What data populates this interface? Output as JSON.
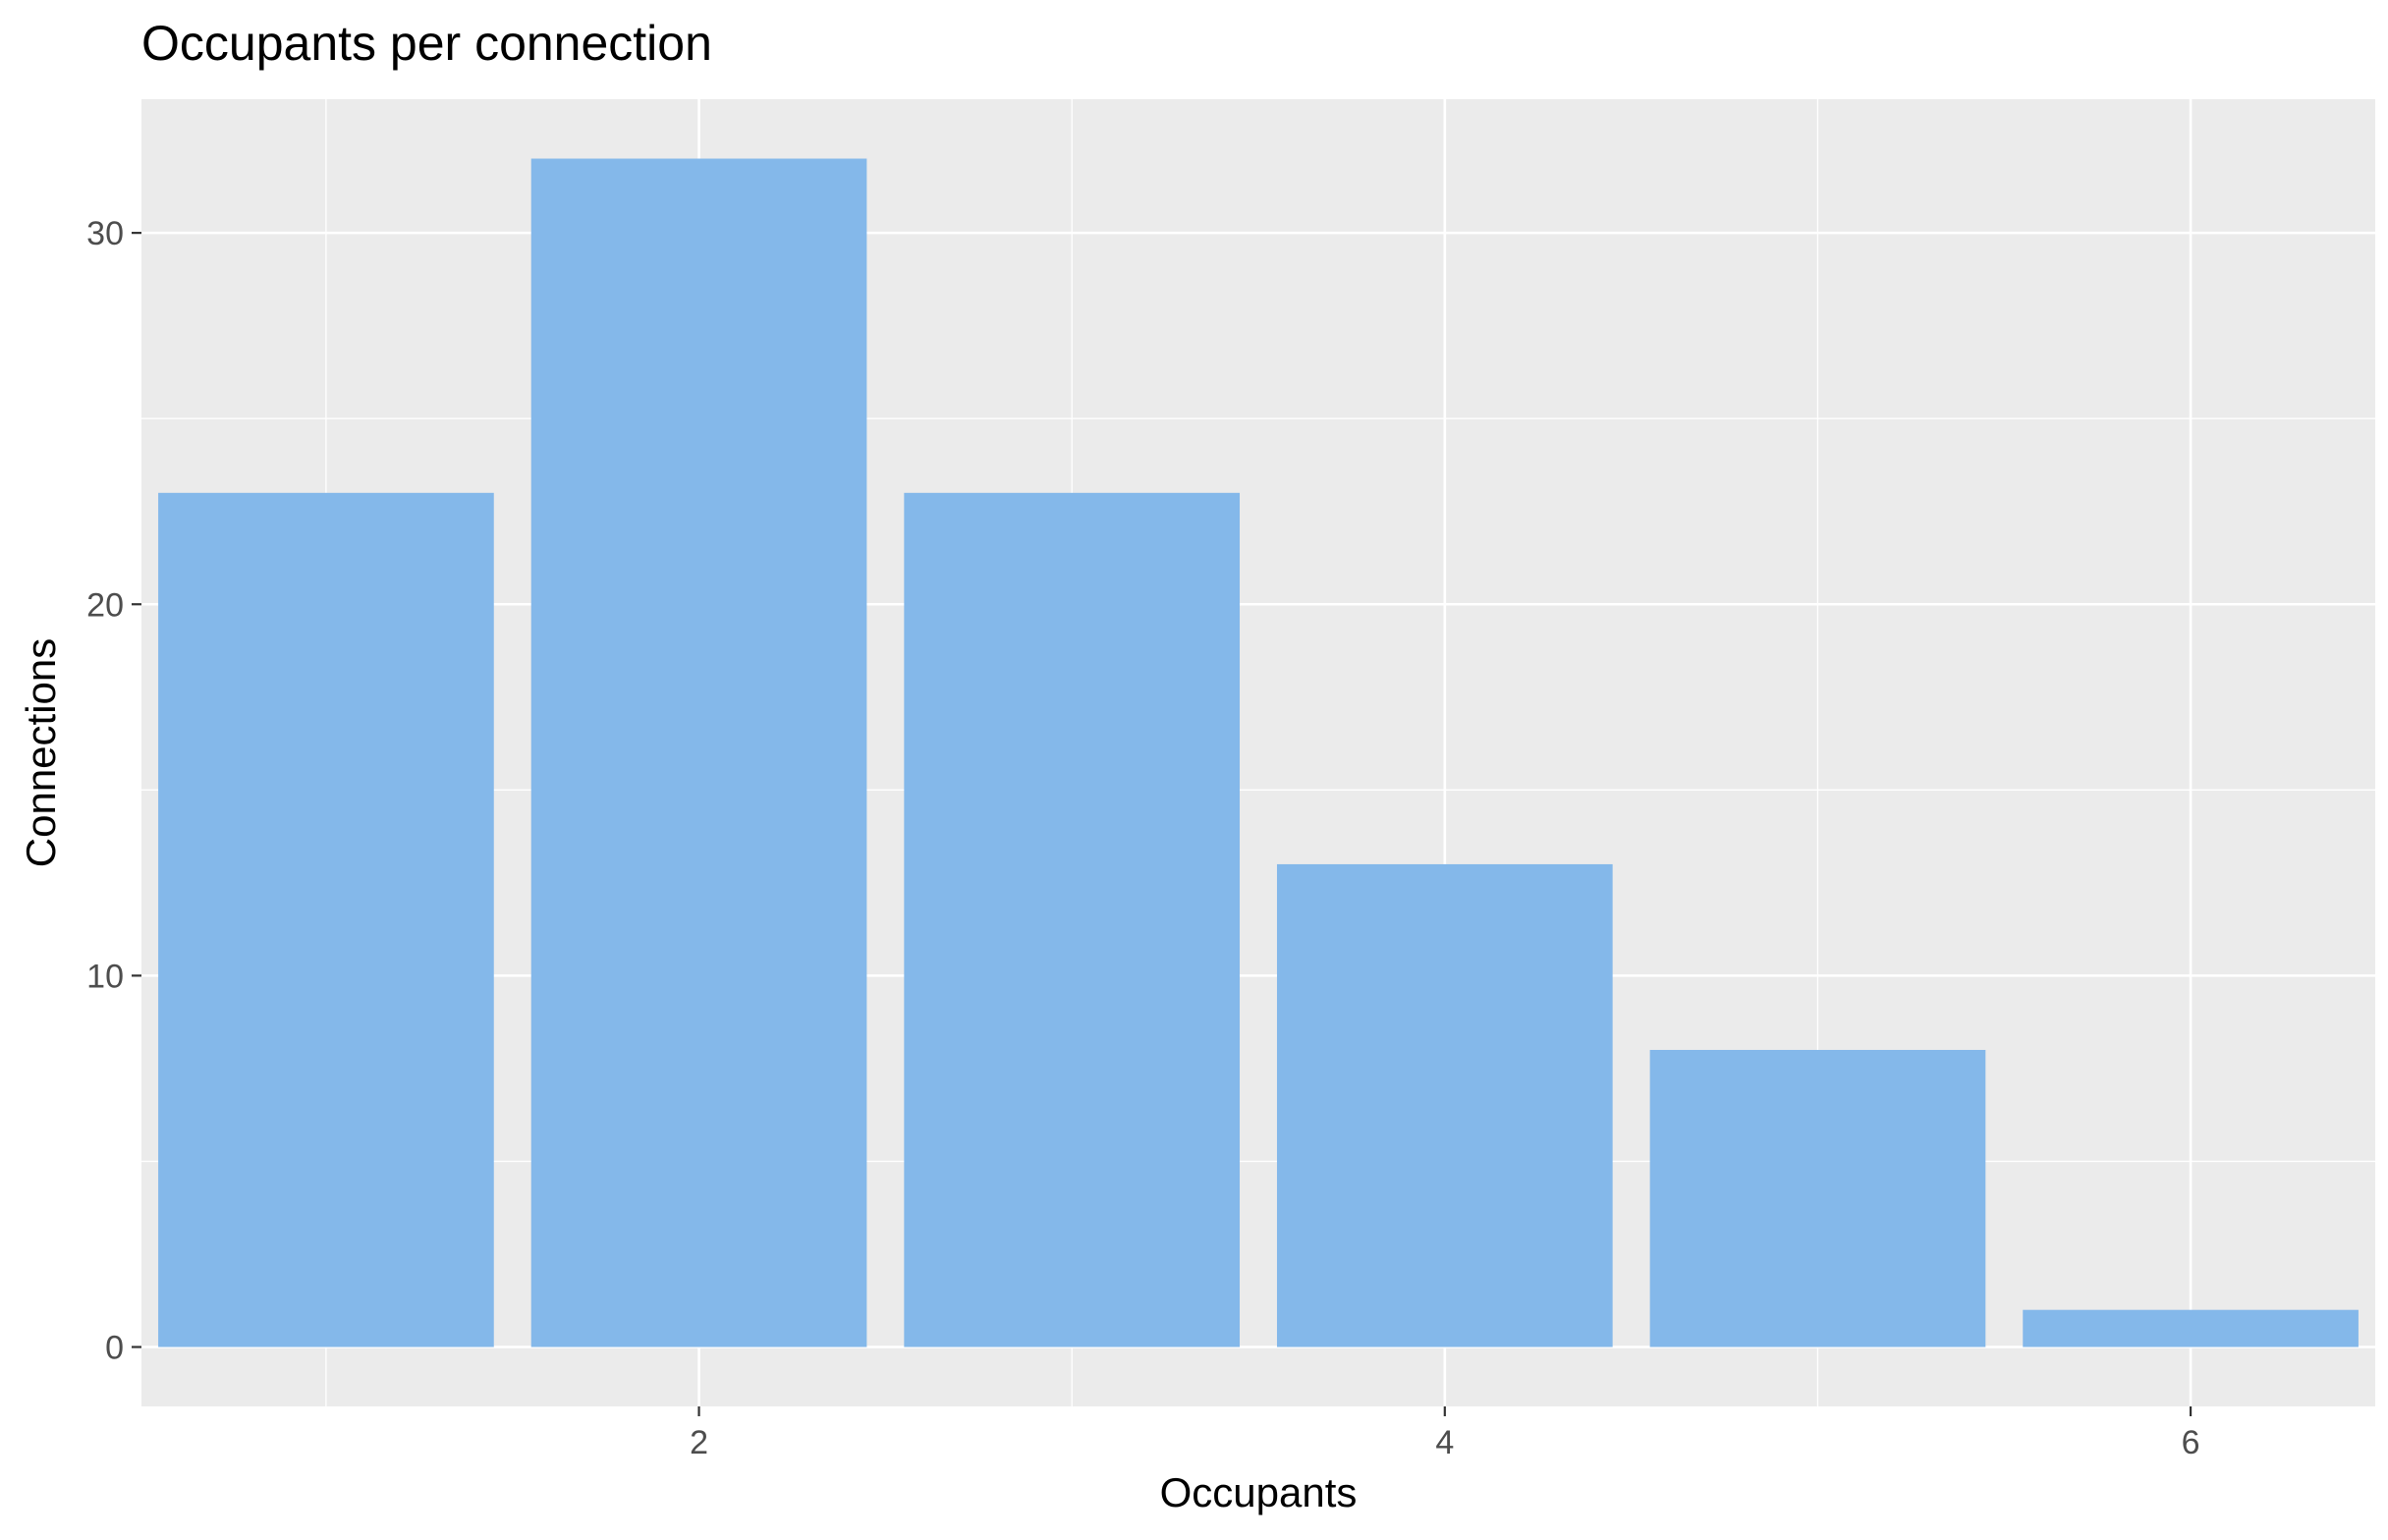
{
  "chart_data": {
    "type": "bar",
    "title": "Occupants per connection",
    "xlabel": "Occupants",
    "ylabel": "Connections",
    "x": [
      1,
      2,
      3,
      4,
      5,
      6
    ],
    "values": [
      23,
      32,
      23,
      13,
      8,
      1
    ],
    "bar_width": 0.9,
    "xlim": [
      0.505,
      6.495
    ],
    "ylim": [
      -1.6,
      33.6
    ],
    "x_ticks": [
      2,
      4,
      6
    ],
    "x_tick_labels": [
      "2",
      "4",
      "6"
    ],
    "y_ticks": [
      0,
      10,
      20,
      30
    ],
    "y_tick_labels": [
      "0",
      "10",
      "20",
      "30"
    ],
    "x_minor_gridlines": [
      1,
      3,
      5
    ],
    "y_minor_gridlines": [
      5,
      15,
      25
    ],
    "grid": true,
    "legend": "none",
    "colors": {
      "bar_fill": "#84B8EA",
      "panel_background": "#EBEBEB",
      "gridline": "#FFFFFF",
      "tick_label": "#4D4D4D",
      "tick_mark": "#333333",
      "text": "#000000"
    }
  }
}
